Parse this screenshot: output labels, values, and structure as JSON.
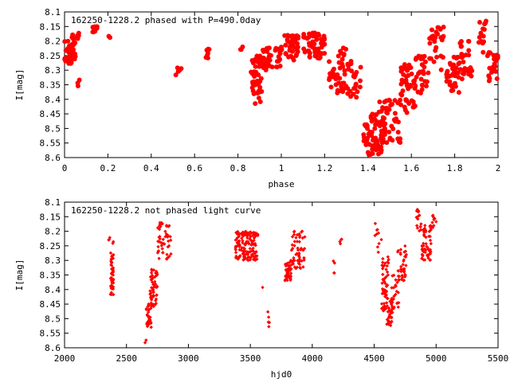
{
  "chart_data": [
    {
      "type": "scatter",
      "title": "162250-1228.2 phased with P=490.0day",
      "xlabel": "phase",
      "ylabel": "I[mag]",
      "xlim": [
        0,
        2
      ],
      "ylim": [
        8.1,
        8.6
      ],
      "y_inverted": true,
      "xticks": [
        "0",
        "0.2",
        "0.4",
        "0.6",
        "0.8",
        "1",
        "1.2",
        "1.4",
        "1.6",
        "1.8",
        "2"
      ],
      "yticks": [
        "8.1",
        "8.15",
        "8.2",
        "8.25",
        "8.3",
        "8.35",
        "8.4",
        "8.45",
        "8.5",
        "8.55",
        "8.6"
      ],
      "grid": false,
      "marker_color": "#ff0000",
      "marker": "filled-circle",
      "segments": [
        {
          "x": [
            0.0,
            0.05
          ],
          "y": [
            8.2,
            8.28
          ],
          "n": 45
        },
        {
          "x": [
            0.03,
            0.07
          ],
          "y": [
            8.17,
            8.2
          ],
          "n": 8
        },
        {
          "x": [
            0.06,
            0.07
          ],
          "y": [
            8.3,
            8.36
          ],
          "n": 3
        },
        {
          "x": [
            0.12,
            0.15
          ],
          "y": [
            8.15,
            8.17
          ],
          "n": 10
        },
        {
          "x": [
            0.2,
            0.21
          ],
          "y": [
            8.18,
            8.19
          ],
          "n": 2
        },
        {
          "x": [
            0.51,
            0.54
          ],
          "y": [
            8.26,
            8.35
          ],
          "n": 6
        },
        {
          "x": [
            0.65,
            0.67
          ],
          "y": [
            8.22,
            8.28
          ],
          "n": 7
        },
        {
          "x": [
            0.81,
            0.83
          ],
          "y": [
            8.22,
            8.23
          ],
          "n": 3
        },
        {
          "x": [
            0.86,
            0.91
          ],
          "y": [
            8.25,
            8.42
          ],
          "n": 45
        },
        {
          "x": [
            0.9,
            1.0
          ],
          "y": [
            8.22,
            8.3
          ],
          "n": 40
        },
        {
          "x": [
            1.0,
            1.08
          ],
          "y": [
            8.18,
            8.27
          ],
          "n": 40
        },
        {
          "x": [
            1.1,
            1.2
          ],
          "y": [
            8.17,
            8.26
          ],
          "n": 55
        },
        {
          "x": [
            1.22,
            1.3
          ],
          "y": [
            8.22,
            8.38
          ],
          "n": 40
        },
        {
          "x": [
            1.3,
            1.37
          ],
          "y": [
            8.26,
            8.4
          ],
          "n": 25
        },
        {
          "x": [
            1.38,
            1.47
          ],
          "y": [
            8.45,
            8.59
          ],
          "n": 70
        },
        {
          "x": [
            1.45,
            1.55
          ],
          "y": [
            8.4,
            8.55
          ],
          "n": 50
        },
        {
          "x": [
            1.55,
            1.62
          ],
          "y": [
            8.28,
            8.46
          ],
          "n": 45
        },
        {
          "x": [
            1.62,
            1.68
          ],
          "y": [
            8.25,
            8.38
          ],
          "n": 30
        },
        {
          "x": [
            1.68,
            1.75
          ],
          "y": [
            8.15,
            8.3
          ],
          "n": 30
        },
        {
          "x": [
            1.76,
            1.82
          ],
          "y": [
            8.25,
            8.38
          ],
          "n": 35
        },
        {
          "x": [
            1.82,
            1.88
          ],
          "y": [
            8.2,
            8.33
          ],
          "n": 30
        },
        {
          "x": [
            1.9,
            1.95
          ],
          "y": [
            8.13,
            8.25
          ],
          "n": 15
        },
        {
          "x": [
            1.95,
            2.0
          ],
          "y": [
            8.22,
            8.34
          ],
          "n": 25
        }
      ]
    },
    {
      "type": "scatter",
      "title": "162250-1228.2 not phased light curve",
      "xlabel": "hjd0",
      "ylabel": "I[mag]",
      "xlim": [
        2000,
        5500
      ],
      "ylim": [
        8.1,
        8.6
      ],
      "y_inverted": true,
      "xticks": [
        "2000",
        "2500",
        "3000",
        "3500",
        "4000",
        "4500",
        "5000",
        "5500"
      ],
      "yticks": [
        "8.1",
        "8.15",
        "8.2",
        "8.25",
        "8.3",
        "8.35",
        "8.4",
        "8.45",
        "8.5",
        "8.55",
        "8.6"
      ],
      "grid": false,
      "marker_color": "#ff0000",
      "marker": "small-diamond",
      "segments": [
        {
          "x": [
            2350,
            2370
          ],
          "y": [
            8.22,
            8.24
          ],
          "n": 3
        },
        {
          "x": [
            2370,
            2395
          ],
          "y": [
            8.27,
            8.42
          ],
          "n": 45
        },
        {
          "x": [
            2390,
            2395
          ],
          "y": [
            8.23,
            8.25
          ],
          "n": 2
        },
        {
          "x": [
            2650,
            2660
          ],
          "y": [
            8.57,
            8.59
          ],
          "n": 2
        },
        {
          "x": [
            2660,
            2700
          ],
          "y": [
            8.45,
            8.53
          ],
          "n": 30
        },
        {
          "x": [
            2690,
            2750
          ],
          "y": [
            8.33,
            8.46
          ],
          "n": 55
        },
        {
          "x": [
            2750,
            2860
          ],
          "y": [
            8.17,
            8.3
          ],
          "n": 50
        },
        {
          "x": [
            3380,
            3560
          ],
          "y": [
            8.2,
            8.3
          ],
          "n": 140
        },
        {
          "x": [
            3590,
            3600
          ],
          "y": [
            8.38,
            8.4
          ],
          "n": 1
        },
        {
          "x": [
            3640,
            3660
          ],
          "y": [
            8.47,
            8.58
          ],
          "n": 6
        },
        {
          "x": [
            3780,
            3830
          ],
          "y": [
            8.3,
            8.37
          ],
          "n": 40
        },
        {
          "x": [
            3830,
            3940
          ],
          "y": [
            8.2,
            8.33
          ],
          "n": 55
        },
        {
          "x": [
            4170,
            4180
          ],
          "y": [
            8.27,
            8.35
          ],
          "n": 4
        },
        {
          "x": [
            4220,
            4240
          ],
          "y": [
            8.22,
            8.27
          ],
          "n": 4
        },
        {
          "x": [
            4500,
            4560
          ],
          "y": [
            8.17,
            8.28
          ],
          "n": 10
        },
        {
          "x": [
            4560,
            4620
          ],
          "y": [
            8.28,
            8.48
          ],
          "n": 55
        },
        {
          "x": [
            4600,
            4650
          ],
          "y": [
            8.43,
            8.53
          ],
          "n": 35
        },
        {
          "x": [
            4640,
            4700
          ],
          "y": [
            8.35,
            8.47
          ],
          "n": 25
        },
        {
          "x": [
            4690,
            4760
          ],
          "y": [
            8.25,
            8.37
          ],
          "n": 35
        },
        {
          "x": [
            4840,
            4880
          ],
          "y": [
            8.12,
            8.2
          ],
          "n": 15
        },
        {
          "x": [
            4880,
            4960
          ],
          "y": [
            8.18,
            8.3
          ],
          "n": 50
        },
        {
          "x": [
            4960,
            5000
          ],
          "y": [
            8.14,
            8.19
          ],
          "n": 10
        }
      ]
    }
  ]
}
